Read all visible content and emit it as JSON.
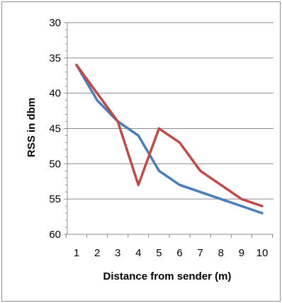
{
  "chart_data": {
    "type": "line",
    "title": "",
    "xlabel": "Distance from sender (m)",
    "ylabel": "RSS in dbm",
    "x": [
      1,
      2,
      3,
      4,
      5,
      6,
      7,
      8,
      9,
      10
    ],
    "x_tick_labels": [
      "1",
      "2",
      "3",
      "4",
      "5",
      "6",
      "7",
      "8",
      "9",
      "10"
    ],
    "y_tick_labels": [
      "30",
      "35",
      "40",
      "45",
      "50",
      "55",
      "60"
    ],
    "ylim": [
      30,
      60
    ],
    "y_inverted": true,
    "grid": true,
    "legend": "none",
    "series": [
      {
        "color": "#4a7ebb",
        "values": [
          36,
          41,
          44,
          46,
          51,
          53,
          54,
          55,
          56,
          57
        ]
      },
      {
        "color": "#be4b48",
        "values": [
          36,
          40,
          44,
          53,
          45,
          47,
          51,
          53,
          55,
          56
        ]
      }
    ]
  }
}
